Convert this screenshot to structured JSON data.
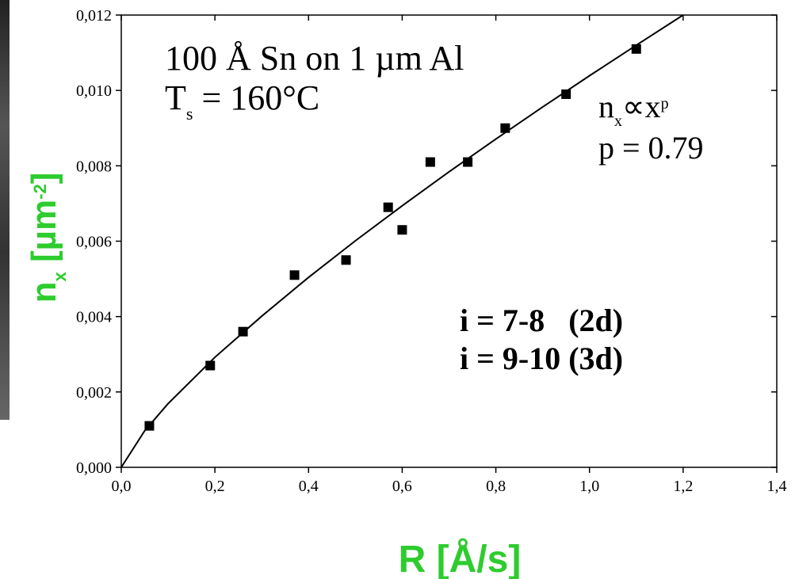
{
  "chart_data": {
    "type": "scatter",
    "x_label": "R [Å/s]",
    "y_label": [
      "n",
      "x",
      " [µm",
      "-2",
      "]"
    ],
    "annotations": [
      [
        "100 Å Sn on 1 µm Al"
      ],
      [
        "T",
        "s",
        " = 160°C"
      ],
      [
        "n",
        "x",
        "∝x",
        "p"
      ],
      [
        "p = 0.79"
      ],
      [
        "i = 7-8   (2d)"
      ],
      [
        "i = 9-10 (3d)"
      ]
    ],
    "xlim": [
      0,
      1.4
    ],
    "ylim": [
      0,
      0.012
    ],
    "xticks": [
      {
        "value": 0,
        "label": "0,0"
      },
      {
        "value": 0.2,
        "label": "0,2"
      },
      {
        "value": 0.4,
        "label": "0,4"
      },
      {
        "value": 0.6,
        "label": "0,6"
      },
      {
        "value": 0.8,
        "label": "0,8"
      },
      {
        "value": 1.0,
        "label": "1,0"
      },
      {
        "value": 1.2,
        "label": "1,2"
      },
      {
        "value": 1.4,
        "label": "1,4"
      }
    ],
    "yticks": [
      {
        "value": 0,
        "label": "0,000"
      },
      {
        "value": 0.002,
        "label": "0,002"
      },
      {
        "value": 0.004,
        "label": "0,004"
      },
      {
        "value": 0.006,
        "label": "0,006"
      },
      {
        "value": 0.008,
        "label": "0,008"
      },
      {
        "value": 0.01,
        "label": "0,010"
      },
      {
        "value": 0.012,
        "label": "0,012"
      }
    ],
    "series": [
      {
        "color": "#000000",
        "style": "markers",
        "x": [
          0.06,
          0.19,
          0.26,
          0.37,
          0.48,
          0.57,
          0.6,
          0.66,
          0.74,
          0.82,
          0.95,
          1.1
        ],
        "values": [
          0.0011,
          0.0027,
          0.0036,
          0.0051,
          0.0055,
          0.0069,
          0.0063,
          0.0081,
          0.0081,
          0.009,
          0.0099,
          0.0111
        ]
      },
      {
        "color": "#000000",
        "style": "line",
        "x": [
          0,
          0.05,
          0.1,
          0.2,
          0.3,
          0.4,
          0.5,
          0.6,
          0.7,
          0.8,
          0.9,
          1.0,
          1.1,
          1.2
        ],
        "values": [
          0,
          0.00097,
          0.00169,
          0.00292,
          0.00401,
          0.00504,
          0.00601,
          0.00694,
          0.00784,
          0.00871,
          0.00956,
          0.01039,
          0.0112,
          0.012
        ]
      }
    ]
  }
}
